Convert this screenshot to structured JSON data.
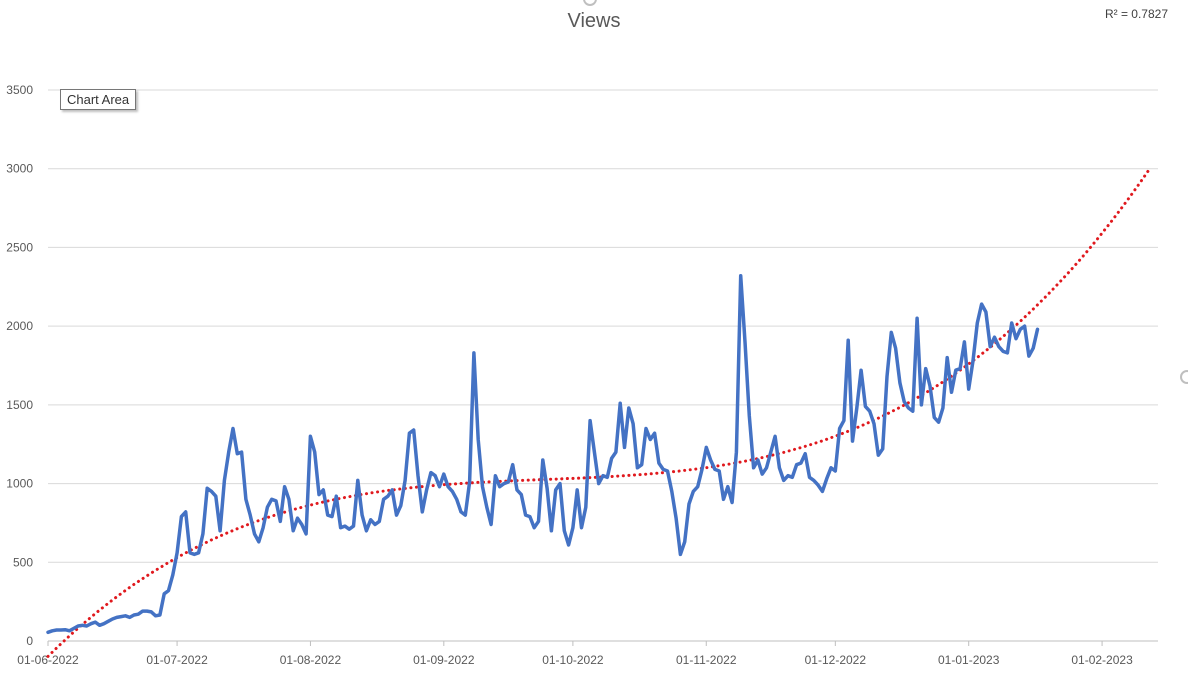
{
  "chart_data": {
    "type": "line",
    "title": "Views",
    "xlabel": "",
    "ylabel": "",
    "ylim": [
      0,
      3500
    ],
    "xlim": [
      "2022-06-01",
      "2023-02-14"
    ],
    "yticks": [
      "0",
      "500",
      "1000",
      "1500",
      "2000",
      "2500",
      "3000",
      "3500"
    ],
    "xticks": [
      "01-06-2022",
      "01-07-2022",
      "01-08-2022",
      "01-09-2022",
      "01-10-2022",
      "01-11-2022",
      "01-12-2022",
      "01-01-2023",
      "01-02-2023"
    ],
    "grid": "horizontal",
    "legend": "none",
    "series": [
      {
        "color": "#4472C4",
        "x_start": "2022-06-01",
        "x_step_days": 1,
        "values": [
          55,
          65,
          70,
          70,
          72,
          65,
          80,
          95,
          100,
          95,
          110,
          120,
          100,
          110,
          125,
          140,
          150,
          155,
          160,
          150,
          165,
          170,
          190,
          190,
          185,
          160,
          165,
          300,
          320,
          420,
          560,
          790,
          820,
          560,
          550,
          560,
          680,
          970,
          950,
          920,
          700,
          1020,
          1200,
          1350,
          1190,
          1200,
          900,
          800,
          680,
          630,
          720,
          850,
          900,
          890,
          760,
          980,
          900,
          700,
          780,
          740,
          680,
          1300,
          1200,
          930,
          960,
          800,
          790,
          920,
          720,
          730,
          710,
          730,
          1020,
          800,
          700,
          770,
          740,
          760,
          900,
          920,
          960,
          800,
          860,
          1020,
          1320,
          1340,
          1050,
          820,
          960,
          1070,
          1050,
          980,
          1060,
          980,
          950,
          900,
          820,
          800,
          1010,
          1830,
          1280,
          980,
          850,
          740,
          1050,
          980,
          1000,
          1010,
          1120,
          960,
          930,
          800,
          790,
          720,
          760,
          1150,
          970,
          700,
          960,
          1000,
          700,
          610,
          720,
          960,
          720,
          850,
          1400,
          1200,
          1000,
          1050,
          1040,
          1160,
          1200,
          1510,
          1230,
          1480,
          1380,
          1100,
          1120,
          1350,
          1280,
          1320,
          1130,
          1090,
          1080,
          950,
          780,
          550,
          630,
          870,
          950,
          980,
          1090,
          1230,
          1150,
          1090,
          1080,
          900,
          980,
          880,
          1200,
          2320,
          1900,
          1430,
          1100,
          1150,
          1060,
          1100,
          1200,
          1300,
          1100,
          1020,
          1050,
          1040,
          1120,
          1130,
          1190,
          1040,
          1020,
          990,
          950,
          1030,
          1100,
          1080,
          1350,
          1400,
          1910,
          1270,
          1480,
          1720,
          1490,
          1460,
          1380,
          1180,
          1220,
          1680,
          1960,
          1860,
          1640,
          1520,
          1480,
          1460,
          2050,
          1500,
          1730,
          1620,
          1420,
          1390,
          1480,
          1800,
          1580,
          1720,
          1730,
          1900,
          1600,
          1780,
          2020,
          2140,
          2090,
          1870,
          1930,
          1870,
          1840,
          1830,
          2020,
          1920,
          1980,
          2000,
          1810,
          1860,
          1980
        ]
      }
    ],
    "trendline": {
      "type": "polynomial",
      "color": "#E0191E",
      "r_squared_label": "R² = 0.7827"
    }
  },
  "ui": {
    "tooltip": "Chart Area"
  }
}
